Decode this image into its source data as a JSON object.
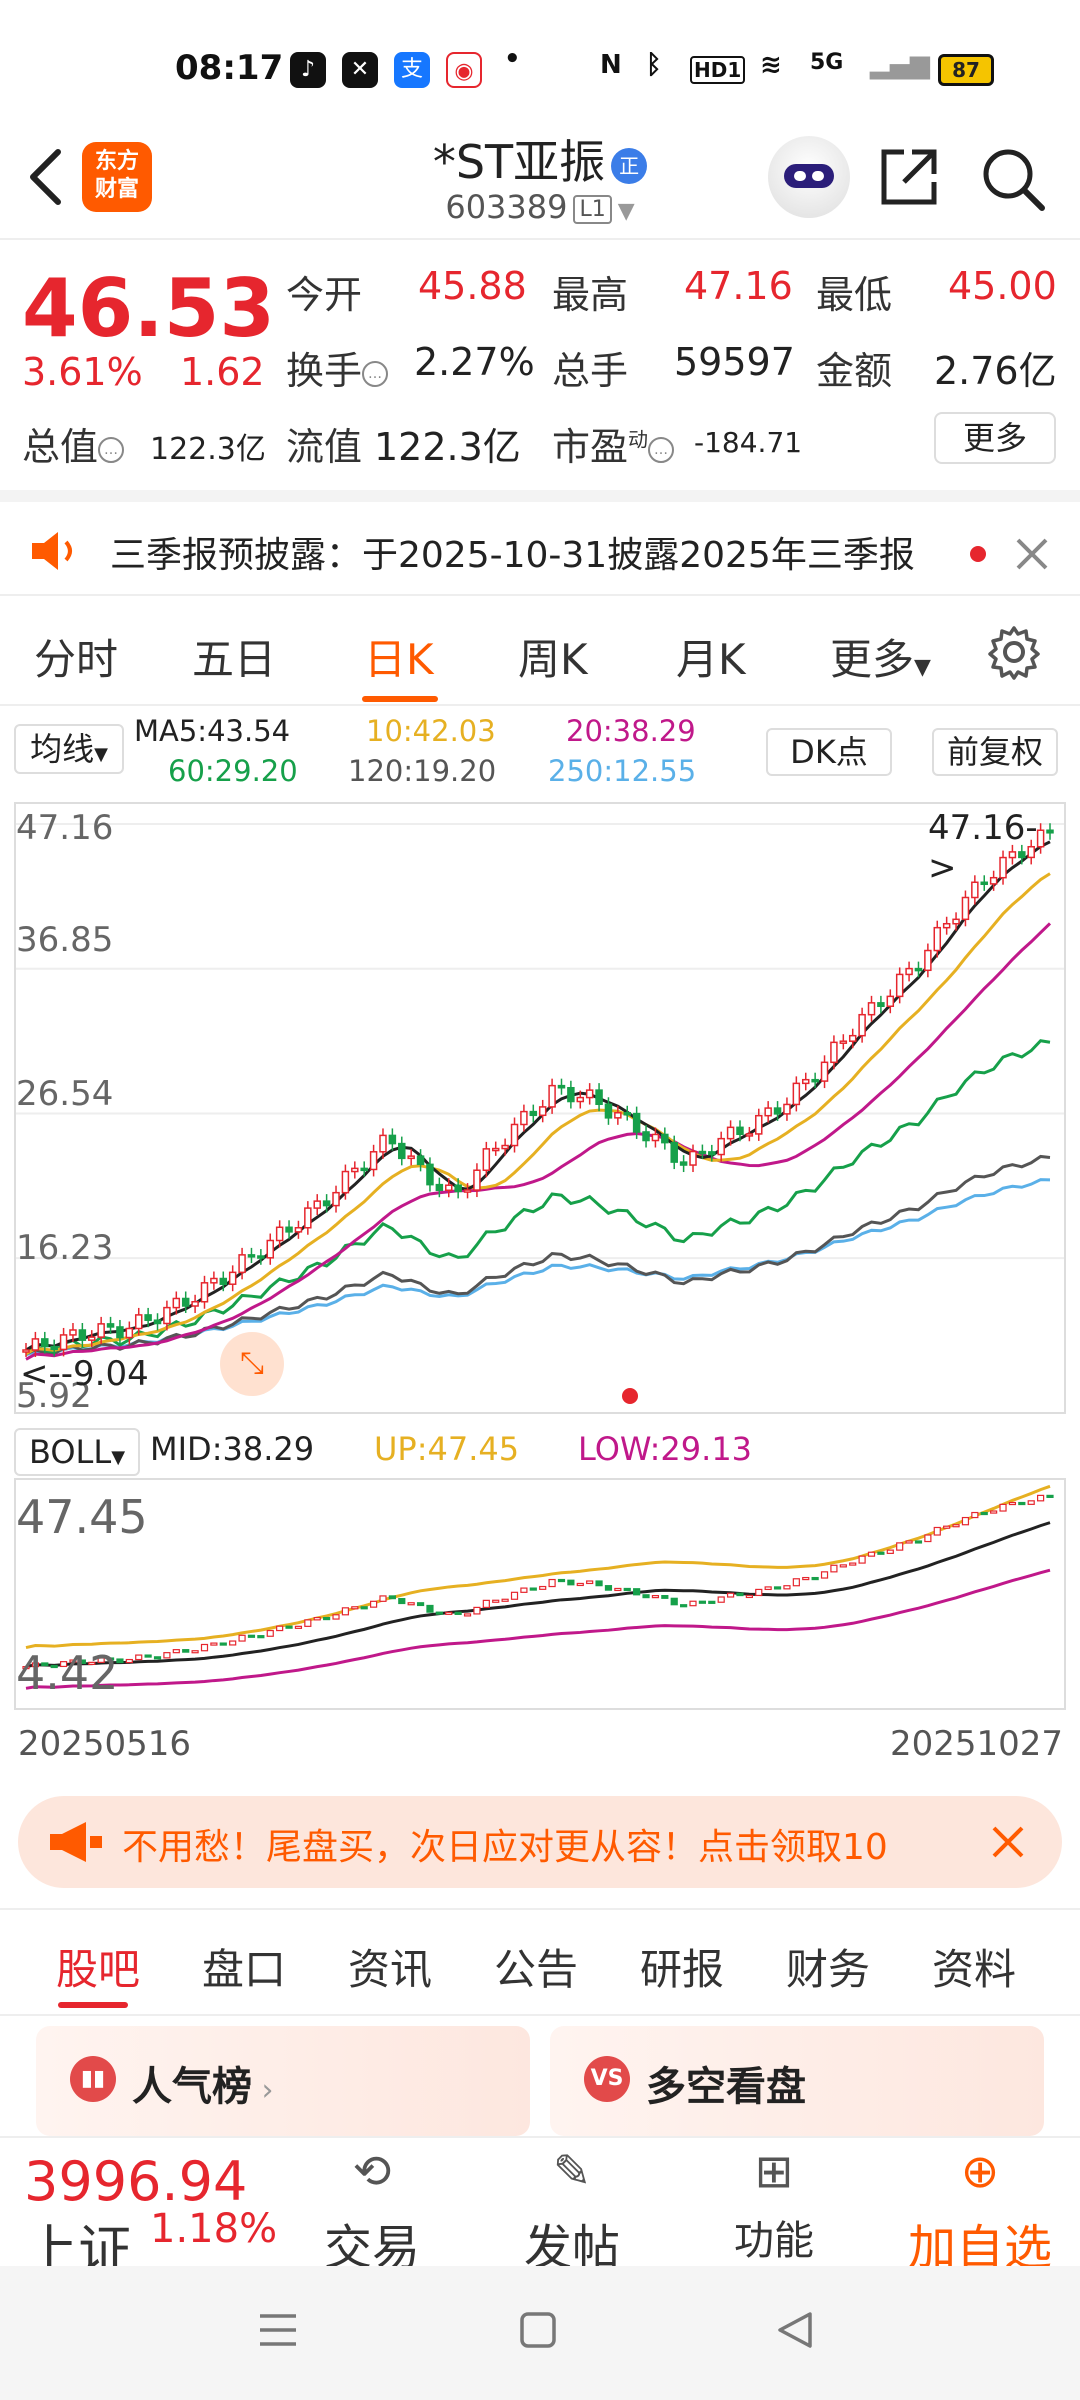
{
  "status_bar": {
    "time": "08:17",
    "battery": "87",
    "network": "5G",
    "hd": "HD1"
  },
  "header": {
    "logo_text_1": "东方",
    "logo_text_2": "财富",
    "title": "*ST亚振",
    "title_badge": "正",
    "code": "603389",
    "level": "L1"
  },
  "quote": {
    "price": "46.53",
    "change_pct": "3.61%",
    "change_amt": "1.62",
    "open_label": "今开",
    "open": "45.88",
    "high_label": "最高",
    "high": "47.16",
    "low_label": "最低",
    "low": "45.00",
    "turnover_label": "换手",
    "turnover": "2.27%",
    "volume_label": "总手",
    "volume": "59597",
    "amount_label": "金额",
    "amount": "2.76亿",
    "mktcap_label": "总值",
    "mktcap": "122.3亿",
    "float_label": "流值",
    "float_cap": "122.3亿",
    "pe_label": "市盈",
    "pe_sup": "动",
    "pe": "-184.71",
    "more_label": "更多"
  },
  "notice": {
    "text": "三季报预披露：于2025-10-31披露2025年三季报"
  },
  "chart_tabs": [
    {
      "label": "分时"
    },
    {
      "label": "五日"
    },
    {
      "label": "日K"
    },
    {
      "label": "周K"
    },
    {
      "label": "月K"
    },
    {
      "label": "更多"
    }
  ],
  "ma_legend": {
    "selector": "均线",
    "ma5": "MA5:43.54",
    "ma10": "10:42.03",
    "ma20": "20:38.29",
    "ma60": "60:29.20",
    "ma120": "120:19.20",
    "ma250": "250:12.55",
    "dk_label": "DK点",
    "adjust_label": "前复权"
  },
  "chart_data": {
    "type": "candlestick",
    "y_ticks": [
      "47.16",
      "36.85",
      "26.54",
      "16.23",
      "5.92"
    ],
    "max_label": "47.16->",
    "min_label": "<--9.04",
    "x_start": "20250516",
    "x_end": "20251027",
    "ylim": [
      5.92,
      47.16
    ],
    "ma_colors": {
      "ma5": "#222222",
      "ma10": "#e6b022",
      "ma20": "#c0188a",
      "ma60": "#16a04a",
      "ma120": "#555555",
      "ma250": "#5ab0e8"
    },
    "candle_up": "#e6262e",
    "candle_down": "#16a04a",
    "closes_approx": [
      9.5,
      10.2,
      10.8,
      11.0,
      12.0,
      13.2,
      14.8,
      16.5,
      18.3,
      20.1,
      22.5,
      24.7,
      22.2,
      20.4,
      23.5,
      25.9,
      28.1,
      27.6,
      26.2,
      24.6,
      22.8,
      24.5,
      25.6,
      27.3,
      29.6,
      32.5,
      34.8,
      37.2,
      40.5,
      43.2,
      45.1,
      46.53
    ]
  },
  "boll": {
    "selector": "BOLL",
    "mid": "MID:38.29",
    "up": "UP:47.45",
    "low": "LOW:29.13",
    "y_top": "47.45",
    "y_bottom": "4.42"
  },
  "banner": {
    "text": "不用愁！尾盘买，次日应对更从容！点击领取10"
  },
  "sub_tabs": [
    {
      "label": "股吧"
    },
    {
      "label": "盘口"
    },
    {
      "label": "资讯"
    },
    {
      "label": "公告"
    },
    {
      "label": "研报"
    },
    {
      "label": "财务"
    },
    {
      "label": "资料"
    }
  ],
  "cards": {
    "popularity": "人气榜",
    "bull_bear": "多空看盘"
  },
  "bottom_bar": {
    "index_value": "3996.94",
    "index_name": "上证",
    "index_pct": "1.18%",
    "trade": "交易",
    "post": "发帖",
    "func": "功能",
    "add": "加自选"
  }
}
